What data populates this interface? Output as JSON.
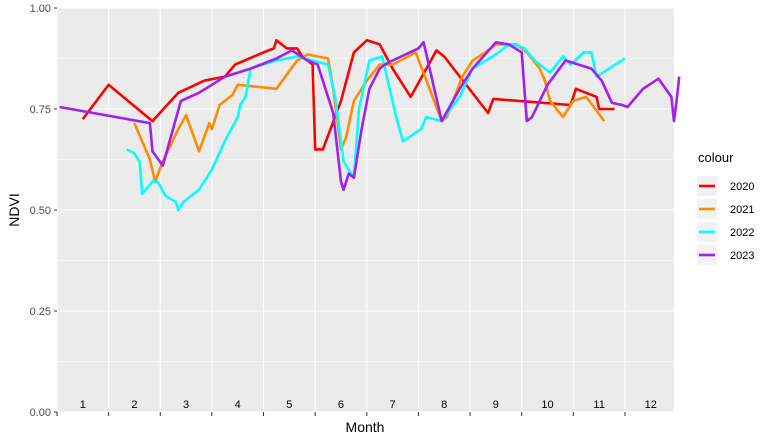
{
  "chart_data": {
    "type": "line",
    "title": "",
    "xlabel": "Month",
    "ylabel": "NDVI",
    "ylim": [
      0,
      1
    ],
    "xlim": [
      0.5,
      12.45
    ],
    "y_ticks": [
      "0.00",
      "0.25",
      "0.50",
      "0.75",
      "1.00"
    ],
    "y_tick_values": [
      0,
      0.25,
      0.5,
      0.75,
      1.0
    ],
    "month_labels": [
      "1",
      "2",
      "3",
      "4",
      "5",
      "6",
      "7",
      "8",
      "9",
      "10",
      "11",
      "12"
    ],
    "grid": true,
    "legend": {
      "title": "colour",
      "position": "right"
    },
    "series": [
      {
        "name": "2020",
        "color": "#ff0000",
        "points": [
          [
            1.0,
            0.725
          ],
          [
            1.5,
            0.81
          ],
          [
            2.35,
            0.72
          ],
          [
            2.85,
            0.79
          ],
          [
            3.35,
            0.82
          ],
          [
            3.75,
            0.83
          ],
          [
            3.95,
            0.86
          ],
          [
            4.5,
            0.89
          ],
          [
            4.7,
            0.9
          ],
          [
            4.75,
            0.92
          ],
          [
            4.95,
            0.9
          ],
          [
            5.15,
            0.9
          ],
          [
            5.25,
            0.88
          ],
          [
            5.45,
            0.86
          ],
          [
            5.5,
            0.65
          ],
          [
            5.65,
            0.65
          ],
          [
            6.0,
            0.77
          ],
          [
            6.25,
            0.89
          ],
          [
            6.5,
            0.92
          ],
          [
            6.75,
            0.91
          ],
          [
            7.0,
            0.85
          ],
          [
            7.35,
            0.78
          ],
          [
            7.85,
            0.895
          ],
          [
            8.0,
            0.88
          ],
          [
            8.85,
            0.74
          ],
          [
            8.95,
            0.775
          ],
          [
            10.45,
            0.76
          ],
          [
            10.55,
            0.8
          ],
          [
            10.95,
            0.78
          ],
          [
            11.0,
            0.75
          ],
          [
            11.3,
            0.75
          ]
        ]
      },
      {
        "name": "2021",
        "color": "#ff8c00",
        "points": [
          [
            2.0,
            0.715
          ],
          [
            2.3,
            0.625
          ],
          [
            2.4,
            0.57
          ],
          [
            2.55,
            0.62
          ],
          [
            2.85,
            0.7
          ],
          [
            3.0,
            0.735
          ],
          [
            3.25,
            0.645
          ],
          [
            3.45,
            0.715
          ],
          [
            3.5,
            0.7
          ],
          [
            3.65,
            0.76
          ],
          [
            3.9,
            0.785
          ],
          [
            4.0,
            0.81
          ],
          [
            4.75,
            0.8
          ],
          [
            5.15,
            0.87
          ],
          [
            5.35,
            0.885
          ],
          [
            5.75,
            0.875
          ],
          [
            5.85,
            0.8
          ],
          [
            6.0,
            0.65
          ],
          [
            6.1,
            0.68
          ],
          [
            6.25,
            0.77
          ],
          [
            6.5,
            0.82
          ],
          [
            6.75,
            0.86
          ],
          [
            7.0,
            0.86
          ],
          [
            7.45,
            0.89
          ],
          [
            7.95,
            0.72
          ],
          [
            8.05,
            0.73
          ],
          [
            8.35,
            0.83
          ],
          [
            8.55,
            0.87
          ],
          [
            8.8,
            0.89
          ],
          [
            9.0,
            0.91
          ],
          [
            9.4,
            0.91
          ],
          [
            9.6,
            0.89
          ],
          [
            9.85,
            0.85
          ],
          [
            9.95,
            0.82
          ],
          [
            10.05,
            0.77
          ],
          [
            10.3,
            0.73
          ],
          [
            10.5,
            0.77
          ],
          [
            10.75,
            0.78
          ],
          [
            11.1,
            0.72
          ]
        ]
      },
      {
        "name": "2022",
        "color": "#00ffff",
        "points": [
          [
            1.85,
            0.65
          ],
          [
            2.0,
            0.64
          ],
          [
            2.1,
            0.62
          ],
          [
            2.15,
            0.54
          ],
          [
            2.35,
            0.57
          ],
          [
            2.45,
            0.57
          ],
          [
            2.6,
            0.535
          ],
          [
            2.8,
            0.52
          ],
          [
            2.85,
            0.5
          ],
          [
            2.95,
            0.52
          ],
          [
            3.25,
            0.55
          ],
          [
            3.5,
            0.6
          ],
          [
            3.75,
            0.67
          ],
          [
            4.0,
            0.73
          ],
          [
            4.05,
            0.76
          ],
          [
            4.15,
            0.78
          ],
          [
            4.25,
            0.85
          ],
          [
            4.75,
            0.87
          ],
          [
            5.15,
            0.88
          ],
          [
            5.45,
            0.87
          ],
          [
            5.75,
            0.86
          ],
          [
            5.9,
            0.77
          ],
          [
            6.05,
            0.62
          ],
          [
            6.25,
            0.58
          ],
          [
            6.35,
            0.75
          ],
          [
            6.55,
            0.87
          ],
          [
            6.8,
            0.88
          ],
          [
            7.05,
            0.74
          ],
          [
            7.2,
            0.67
          ],
          [
            7.55,
            0.7
          ],
          [
            7.65,
            0.73
          ],
          [
            7.95,
            0.72
          ],
          [
            8.3,
            0.78
          ],
          [
            8.55,
            0.85
          ],
          [
            9.0,
            0.885
          ],
          [
            9.2,
            0.905
          ],
          [
            9.35,
            0.91
          ],
          [
            9.55,
            0.9
          ],
          [
            9.75,
            0.87
          ],
          [
            10.05,
            0.84
          ],
          [
            10.3,
            0.88
          ],
          [
            10.45,
            0.86
          ],
          [
            10.7,
            0.89
          ],
          [
            10.85,
            0.89
          ],
          [
            10.95,
            0.83
          ],
          [
            11.5,
            0.875
          ]
        ]
      },
      {
        "name": "2023",
        "color": "#a020f0",
        "points": [
          [
            0.55,
            0.755
          ],
          [
            2.3,
            0.715
          ],
          [
            2.35,
            0.645
          ],
          [
            2.55,
            0.61
          ],
          [
            2.9,
            0.77
          ],
          [
            3.25,
            0.79
          ],
          [
            3.5,
            0.81
          ],
          [
            3.75,
            0.83
          ],
          [
            4.25,
            0.85
          ],
          [
            4.75,
            0.875
          ],
          [
            5.05,
            0.895
          ],
          [
            5.35,
            0.87
          ],
          [
            5.55,
            0.86
          ],
          [
            5.85,
            0.74
          ],
          [
            6.0,
            0.57
          ],
          [
            6.05,
            0.55
          ],
          [
            6.15,
            0.59
          ],
          [
            6.25,
            0.58
          ],
          [
            6.4,
            0.7
          ],
          [
            6.55,
            0.8
          ],
          [
            6.75,
            0.85
          ],
          [
            6.85,
            0.86
          ],
          [
            7.0,
            0.87
          ],
          [
            7.5,
            0.9
          ],
          [
            7.6,
            0.915
          ],
          [
            7.95,
            0.72
          ],
          [
            8.3,
            0.8
          ],
          [
            8.55,
            0.85
          ],
          [
            9.0,
            0.915
          ],
          [
            9.25,
            0.91
          ],
          [
            9.5,
            0.89
          ],
          [
            9.6,
            0.72
          ],
          [
            9.7,
            0.73
          ],
          [
            10.0,
            0.81
          ],
          [
            10.35,
            0.87
          ],
          [
            10.85,
            0.85
          ],
          [
            11.05,
            0.82
          ],
          [
            11.25,
            0.765
          ],
          [
            11.45,
            0.76
          ],
          [
            11.55,
            0.755
          ],
          [
            11.85,
            0.8
          ],
          [
            12.15,
            0.825
          ],
          [
            12.4,
            0.78
          ],
          [
            12.45,
            0.72
          ],
          [
            12.5,
            0.77
          ],
          [
            12.55,
            0.83
          ]
        ]
      }
    ]
  }
}
